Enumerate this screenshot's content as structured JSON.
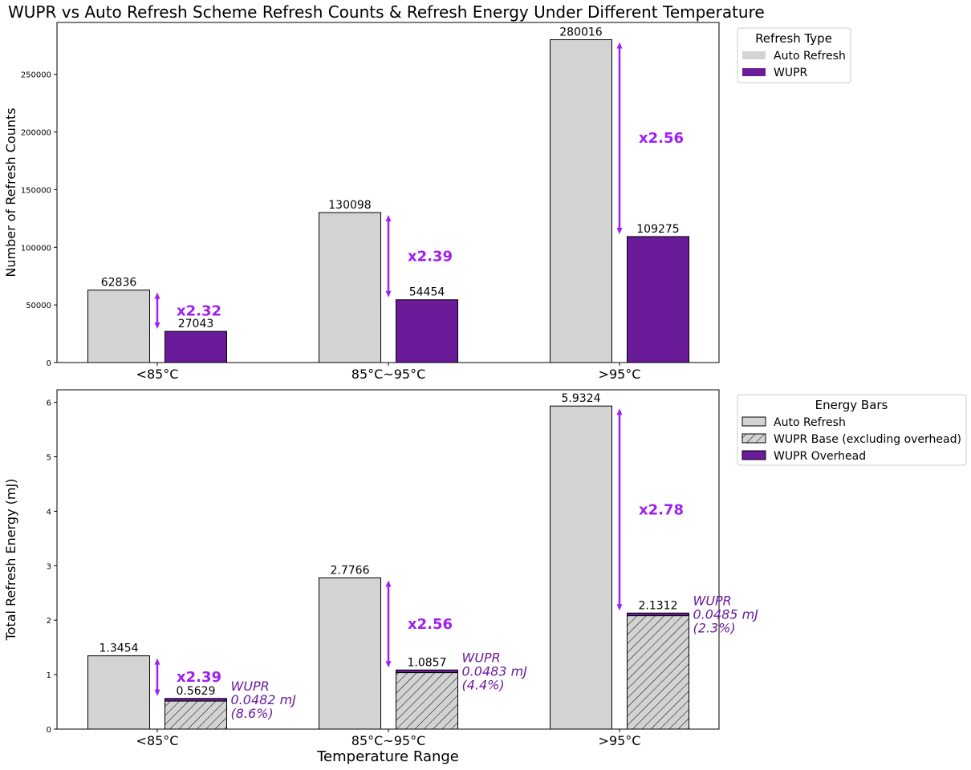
{
  "title": "WUPR vs Auto Refresh Scheme Refresh Counts & Refresh Energy Under Different Temperature",
  "colors": {
    "auto": "#d3d3d3",
    "wupr": "#6a1b9a",
    "ratio": "#a020f0",
    "edge": "#000000"
  },
  "chart_data": [
    {
      "type": "bar",
      "categories": [
        "<85°C",
        "85°C~95°C",
        ">95°C"
      ],
      "ylabel": "Number of Refresh Counts",
      "xlabel": "",
      "ylim": [
        0,
        295000
      ],
      "yticks": [
        0,
        50000,
        100000,
        150000,
        200000,
        250000
      ],
      "series": [
        {
          "name": "Auto Refresh",
          "values": [
            62836,
            130098,
            280016
          ]
        },
        {
          "name": "WUPR",
          "values": [
            27043,
            54454,
            109275
          ]
        }
      ],
      "ratios": [
        "x2.32",
        "x2.39",
        "x2.56"
      ],
      "legend": {
        "title": "Refresh Type",
        "position": "outside-top-right",
        "entries": [
          "Auto Refresh",
          "WUPR"
        ]
      }
    },
    {
      "type": "bar",
      "categories": [
        "<85°C",
        "85°C~95°C",
        ">95°C"
      ],
      "ylabel": "Total Refresh Energy (mJ)",
      "xlabel": "Temperature Range",
      "ylim": [
        0,
        6.23
      ],
      "yticks": [
        0,
        1,
        2,
        3,
        4,
        5,
        6
      ],
      "series": [
        {
          "name": "Auto Refresh",
          "values": [
            1.3454,
            2.7766,
            5.9324
          ]
        },
        {
          "name": "WUPR Base (excluding overhead)",
          "values": [
            0.5147,
            1.0374,
            2.0827
          ]
        },
        {
          "name": "WUPR Overhead",
          "values": [
            0.0482,
            0.0483,
            0.0485
          ]
        }
      ],
      "totals": [
        "0.5629",
        "1.0857",
        "2.1312"
      ],
      "ratios": [
        "x2.39",
        "x2.56",
        "x2.78"
      ],
      "overhead_labels": [
        [
          "WUPR",
          "0.0482 mJ",
          "(8.6%)"
        ],
        [
          "WUPR",
          "0.0483 mJ",
          "(4.4%)"
        ],
        [
          "WUPR",
          "0.0485 mJ",
          "(2.3%)"
        ]
      ],
      "legend": {
        "title": "Energy Bars",
        "position": "outside-top-right",
        "entries": [
          "Auto Refresh",
          "WUPR Base (excluding overhead)",
          "WUPR Overhead"
        ]
      }
    }
  ]
}
